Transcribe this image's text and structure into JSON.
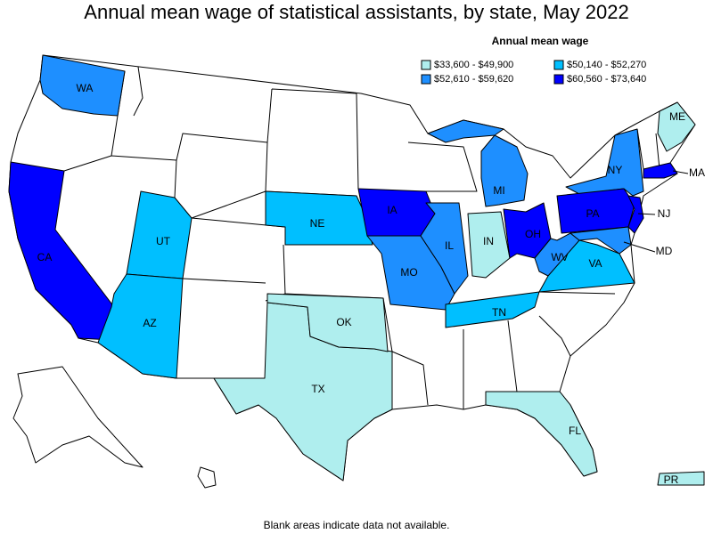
{
  "title": "Annual mean wage of statistical assistants, by state, May 2022",
  "legend": {
    "title": "Annual mean wage",
    "items": [
      {
        "label": "$33,600 - $49,900",
        "color": "#afeeee"
      },
      {
        "label": "$50,140 - $52,270",
        "color": "#00bfff"
      },
      {
        "label": "$52,610 - $59,620",
        "color": "#1e8fff"
      },
      {
        "label": "$60,560 - $73,640",
        "color": "#0000ff"
      }
    ]
  },
  "states": [
    {
      "abbr": "WA",
      "bin": 2
    },
    {
      "abbr": "CA",
      "bin": 3
    },
    {
      "abbr": "UT",
      "bin": 1
    },
    {
      "abbr": "AZ",
      "bin": 1
    },
    {
      "abbr": "NE",
      "bin": 1
    },
    {
      "abbr": "IA",
      "bin": 3
    },
    {
      "abbr": "MO",
      "bin": 2
    },
    {
      "abbr": "IL",
      "bin": 2
    },
    {
      "abbr": "IN",
      "bin": 0
    },
    {
      "abbr": "OH",
      "bin": 3
    },
    {
      "abbr": "MI",
      "bin": 2
    },
    {
      "abbr": "TN",
      "bin": 1
    },
    {
      "abbr": "WV",
      "bin": 2
    },
    {
      "abbr": "VA",
      "bin": 1
    },
    {
      "abbr": "NY",
      "bin": 2
    },
    {
      "abbr": "PA",
      "bin": 3
    },
    {
      "abbr": "NJ",
      "bin": 3
    },
    {
      "abbr": "MD",
      "bin": 2
    },
    {
      "abbr": "MA",
      "bin": 3
    },
    {
      "abbr": "ME",
      "bin": 0
    },
    {
      "abbr": "TX",
      "bin": 0
    },
    {
      "abbr": "OK",
      "bin": 0
    },
    {
      "abbr": "FL",
      "bin": 0
    },
    {
      "abbr": "PR",
      "bin": 0
    }
  ],
  "note": "Blank areas indicate data not available."
}
